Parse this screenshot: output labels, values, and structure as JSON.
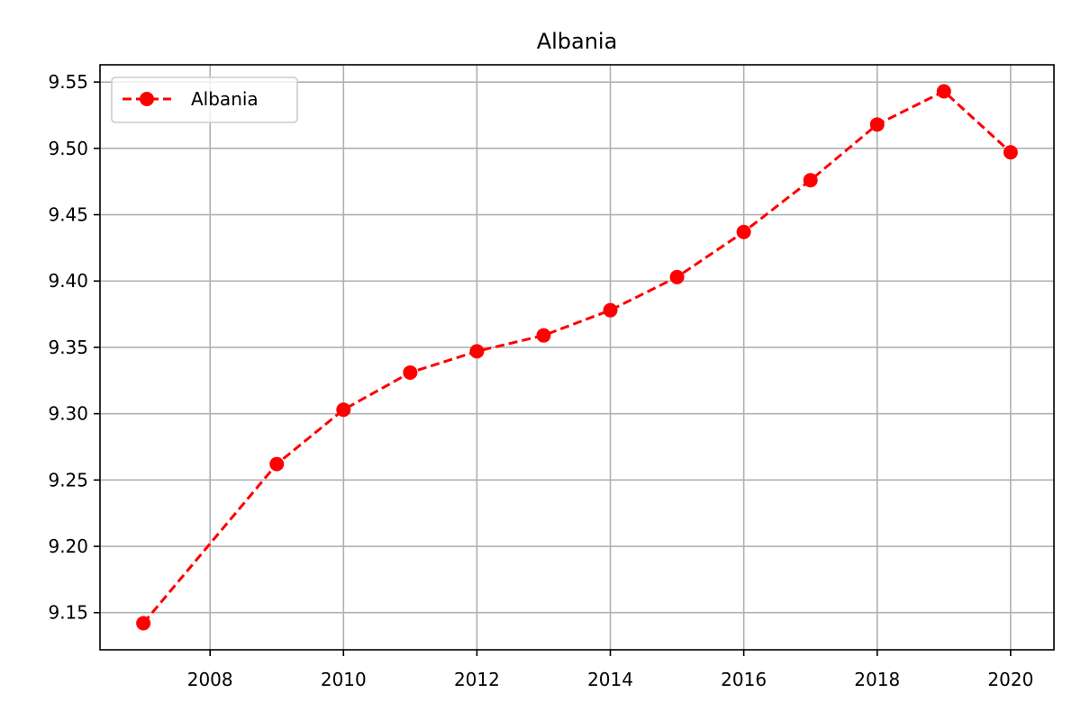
{
  "chart_data": {
    "type": "line",
    "title": "Albania",
    "xlabel": "",
    "ylabel": "",
    "x": [
      2007,
      2009,
      2010,
      2011,
      2012,
      2013,
      2014,
      2015,
      2016,
      2017,
      2018,
      2019,
      2020
    ],
    "series": [
      {
        "name": "Albania",
        "values": [
          9.142,
          9.262,
          9.303,
          9.331,
          9.347,
          9.359,
          9.378,
          9.403,
          9.437,
          9.476,
          9.518,
          9.543,
          9.497
        ],
        "color": "#ff0000",
        "line_style": "dashed",
        "marker": "circle"
      }
    ],
    "x_ticks": [
      "2008",
      "2010",
      "2012",
      "2014",
      "2016",
      "2018",
      "2020"
    ],
    "y_ticks": [
      "9.15",
      "9.20",
      "9.25",
      "9.30",
      "9.35",
      "9.40",
      "9.45",
      "9.50",
      "9.55"
    ],
    "xlim": [
      2006.35,
      2020.65
    ],
    "ylim": [
      9.122,
      9.563
    ],
    "grid": true,
    "legend_position": "top-left"
  }
}
